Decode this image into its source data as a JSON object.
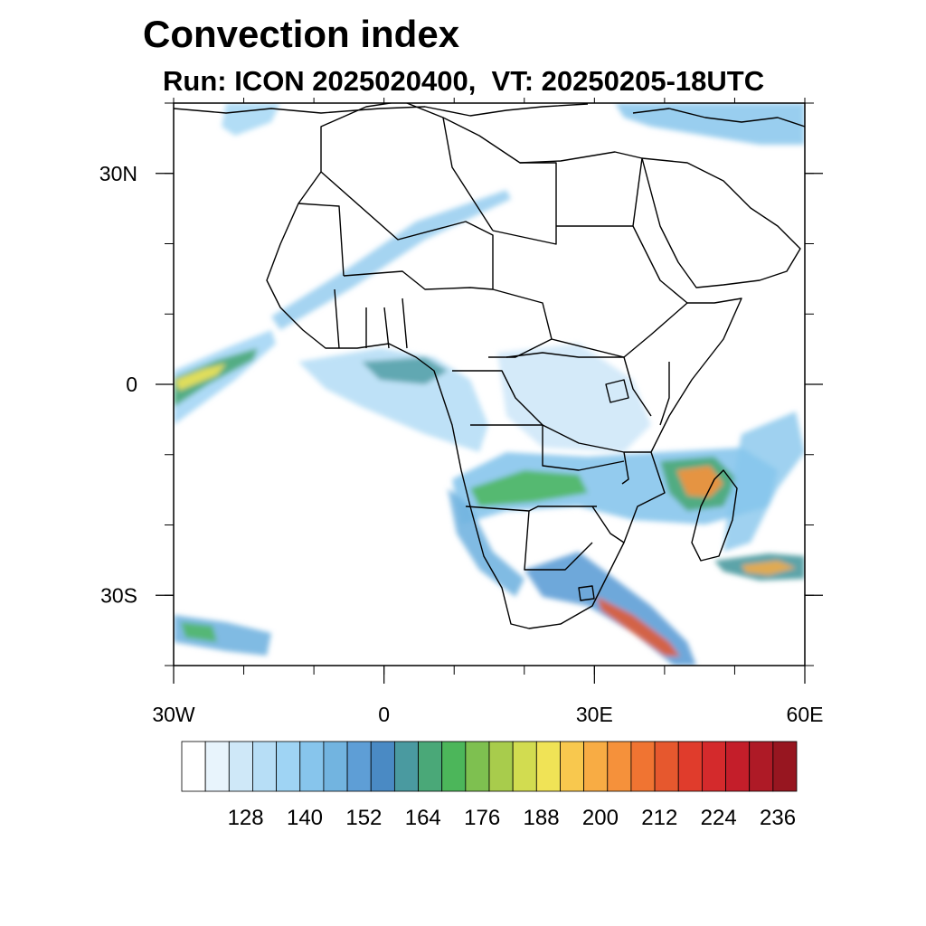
{
  "header": {
    "title": "Convection index",
    "subtitle": "Run: ICON 2025020400,  VT: 20250205-18UTC"
  },
  "map": {
    "lon_range": [
      -30,
      60
    ],
    "lat_range": [
      -40,
      40
    ],
    "lon_ticks": [
      {
        "value": -30,
        "label": "30W"
      },
      {
        "value": 0,
        "label": "0"
      },
      {
        "value": 30,
        "label": "30E"
      },
      {
        "value": 60,
        "label": "60E"
      }
    ],
    "lat_ticks": [
      {
        "value": 30,
        "label": "30N"
      },
      {
        "value": 0,
        "label": "0"
      },
      {
        "value": -30,
        "label": "30S"
      }
    ],
    "minor_lon_step": 10,
    "minor_lat_step": 10
  },
  "colorbar": {
    "colors": [
      "#ffffff",
      "#e8f4fc",
      "#cfe8f8",
      "#b7def6",
      "#9fd4f4",
      "#87c5ec",
      "#72b4e0",
      "#5e9ed6",
      "#4a8ac4",
      "#4a9aa0",
      "#4aa878",
      "#4cb65a",
      "#7ec050",
      "#a8cc4c",
      "#d2dc50",
      "#f0e356",
      "#f8c84e",
      "#f8ac44",
      "#f5913b",
      "#f07432",
      "#e6582e",
      "#e03c2c",
      "#d42a2c",
      "#c41e2a",
      "#ae1a26",
      "#971620"
    ],
    "labels": [
      "128",
      "140",
      "152",
      "164",
      "176",
      "188",
      "200",
      "212",
      "224",
      "236"
    ]
  }
}
